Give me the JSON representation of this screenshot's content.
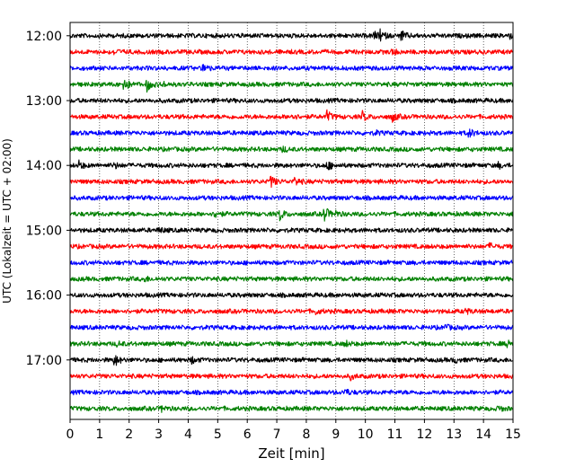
{
  "chart_data": {
    "type": "line",
    "subtype": "helicorder",
    "xlabel": "Zeit  [min]",
    "ylabel": "UTC (Lokalzeit = UTC + 02:00)",
    "xlim": [
      0,
      15
    ],
    "x_ticks": [
      "0",
      "1",
      "2",
      "3",
      "4",
      "5",
      "6",
      "7",
      "8",
      "9",
      "10",
      "11",
      "12",
      "13",
      "14",
      "15"
    ],
    "y_ticks": [
      "12:00",
      "13:00",
      "14:00",
      "15:00",
      "16:00",
      "17:00"
    ],
    "grid": "vertical dotted at each minute",
    "trace_interval_minutes": 15,
    "color_cycle": [
      "#000000",
      "#ff0000",
      "#0000ff",
      "#008000"
    ],
    "rows": [
      {
        "start": "12:00",
        "color": "#000000",
        "events": [
          {
            "t": 10.3,
            "a": 0.45
          },
          {
            "t": 10.5,
            "a": 0.6
          },
          {
            "t": 11.2,
            "a": 0.65
          },
          {
            "t": 14.8,
            "a": 0.5
          }
        ]
      },
      {
        "start": "12:15",
        "color": "#ff0000",
        "events": [
          {
            "t": 1.5,
            "a": 0.3
          },
          {
            "t": 10.9,
            "a": 0.35
          }
        ]
      },
      {
        "start": "12:30",
        "color": "#0000ff",
        "events": [
          {
            "t": 4.5,
            "a": 0.55
          }
        ]
      },
      {
        "start": "12:45",
        "color": "#008000",
        "events": [
          {
            "t": 1.8,
            "a": 0.9
          },
          {
            "t": 2.6,
            "a": 0.8
          },
          {
            "t": 3.1,
            "a": 0.3
          }
        ]
      },
      {
        "start": "13:00",
        "color": "#000000",
        "events": []
      },
      {
        "start": "13:15",
        "color": "#ff0000",
        "events": [
          {
            "t": 7.5,
            "a": 0.35
          },
          {
            "t": 8.7,
            "a": 0.65
          },
          {
            "t": 9.9,
            "a": 0.55
          },
          {
            "t": 10.9,
            "a": 0.6
          }
        ]
      },
      {
        "start": "13:30",
        "color": "#0000ff",
        "events": [
          {
            "t": 10.3,
            "a": 0.25
          },
          {
            "t": 13.5,
            "a": 0.55
          }
        ]
      },
      {
        "start": "13:45",
        "color": "#008000",
        "events": [
          {
            "t": 7.2,
            "a": 0.3
          }
        ]
      },
      {
        "start": "14:00",
        "color": "#000000",
        "events": [
          {
            "t": 0.3,
            "a": 0.45
          },
          {
            "t": 1.5,
            "a": 0.3
          },
          {
            "t": 8.7,
            "a": 0.55
          },
          {
            "t": 14.5,
            "a": 0.3
          }
        ]
      },
      {
        "start": "14:15",
        "color": "#ff0000",
        "events": [
          {
            "t": 6.8,
            "a": 0.7
          },
          {
            "t": 7.6,
            "a": 0.5
          }
        ]
      },
      {
        "start": "14:30",
        "color": "#0000ff",
        "events": []
      },
      {
        "start": "14:45",
        "color": "#008000",
        "events": [
          {
            "t": 4.9,
            "a": 0.45
          },
          {
            "t": 7.1,
            "a": 0.7
          },
          {
            "t": 8.6,
            "a": 1.0
          },
          {
            "t": 9.0,
            "a": 0.3
          }
        ]
      },
      {
        "start": "15:00",
        "color": "#000000",
        "events": [
          {
            "t": 3.0,
            "a": 0.35
          }
        ]
      },
      {
        "start": "15:15",
        "color": "#ff0000",
        "events": [
          {
            "t": 14.2,
            "a": 0.3
          }
        ]
      },
      {
        "start": "15:30",
        "color": "#0000ff",
        "events": []
      },
      {
        "start": "15:45",
        "color": "#008000",
        "events": [
          {
            "t": 2.5,
            "a": 0.3
          }
        ]
      },
      {
        "start": "16:00",
        "color": "#000000",
        "events": []
      },
      {
        "start": "16:15",
        "color": "#ff0000",
        "events": [
          {
            "t": 8.3,
            "a": 0.3
          },
          {
            "t": 13.4,
            "a": 0.3
          }
        ]
      },
      {
        "start": "16:30",
        "color": "#0000ff",
        "events": [
          {
            "t": 12.7,
            "a": 0.3
          }
        ]
      },
      {
        "start": "16:45",
        "color": "#008000",
        "events": [
          {
            "t": 1.6,
            "a": 0.3
          },
          {
            "t": 9.3,
            "a": 0.35
          },
          {
            "t": 14.8,
            "a": 0.55
          }
        ]
      },
      {
        "start": "17:00",
        "color": "#000000",
        "events": [
          {
            "t": 1.5,
            "a": 0.75
          },
          {
            "t": 4.1,
            "a": 0.4
          },
          {
            "t": 13.0,
            "a": 0.3
          }
        ]
      },
      {
        "start": "17:15",
        "color": "#ff0000",
        "events": [
          {
            "t": 9.5,
            "a": 0.3
          }
        ]
      },
      {
        "start": "17:30",
        "color": "#0000ff",
        "events": [
          {
            "t": 9.3,
            "a": 0.4
          }
        ]
      },
      {
        "start": "17:45",
        "color": "#008000",
        "events": [
          {
            "t": 3.1,
            "a": 0.3
          },
          {
            "t": 14.5,
            "a": 0.3
          }
        ]
      }
    ]
  }
}
